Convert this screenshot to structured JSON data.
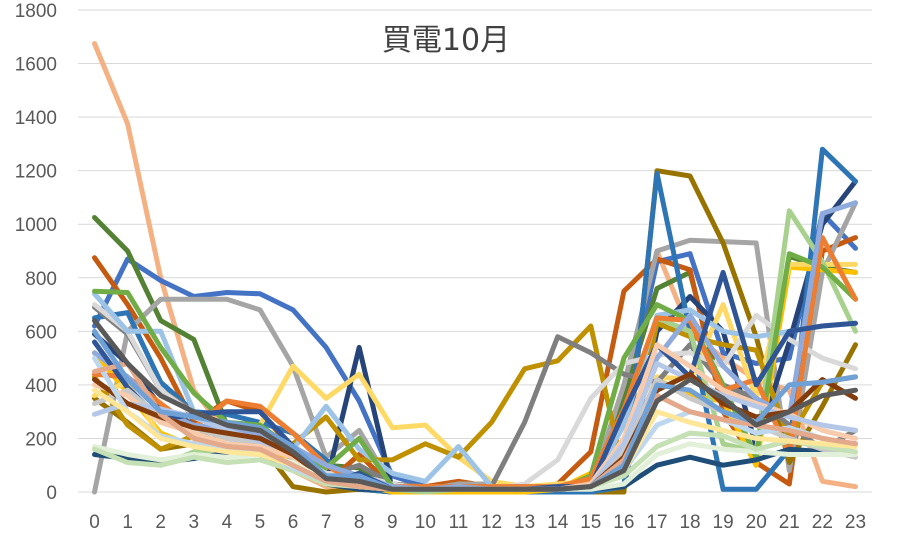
{
  "chart_data": {
    "type": "line",
    "title": "買電10月",
    "xlabel": "",
    "ylabel": "",
    "x": [
      0,
      1,
      2,
      3,
      4,
      5,
      6,
      7,
      8,
      9,
      10,
      11,
      12,
      13,
      14,
      15,
      16,
      17,
      18,
      19,
      20,
      21,
      22,
      23
    ],
    "ylim": [
      0,
      1800
    ],
    "yticks": [
      0,
      200,
      400,
      600,
      800,
      1000,
      1200,
      1400,
      1600,
      1800
    ],
    "grid": true,
    "legend": "none",
    "series": [
      {
        "color": "#F4B183",
        "values": [
          1675,
          1375,
          800,
          380,
          220,
          170,
          80,
          20,
          10,
          0,
          0,
          0,
          0,
          0,
          0,
          0,
          300,
          900,
          600,
          500,
          420,
          380,
          40,
          20
        ]
      },
      {
        "color": "#4472C4",
        "values": [
          620,
          870,
          790,
          730,
          745,
          740,
          680,
          540,
          340,
          60,
          20,
          10,
          10,
          10,
          10,
          20,
          300,
          860,
          890,
          520,
          480,
          500,
          1040,
          910
        ]
      },
      {
        "color": "#548235",
        "values": [
          1025,
          900,
          640,
          570,
          250,
          220,
          120,
          100,
          90,
          20,
          10,
          0,
          0,
          0,
          0,
          20,
          350,
          760,
          820,
          340,
          100,
          880,
          840,
          820
        ]
      },
      {
        "color": "#C55A11",
        "values": [
          875,
          700,
          500,
          260,
          340,
          300,
          160,
          30,
          140,
          20,
          20,
          40,
          20,
          10,
          30,
          150,
          750,
          870,
          830,
          300,
          110,
          30,
          900,
          950
        ]
      },
      {
        "color": "#A5A5A5",
        "values": [
          0,
          600,
          720,
          720,
          720,
          680,
          470,
          130,
          230,
          20,
          10,
          30,
          30,
          20,
          20,
          20,
          400,
          900,
          940,
          935,
          930,
          80,
          820,
          1080
        ]
      },
      {
        "color": "#997300",
        "values": [
          350,
          260,
          160,
          180,
          210,
          180,
          20,
          0,
          10,
          0,
          0,
          0,
          0,
          0,
          0,
          0,
          0,
          1200,
          1180,
          930,
          580,
          110,
          320,
          550
        ]
      },
      {
        "color": "#264478",
        "values": [
          590,
          480,
          320,
          250,
          230,
          220,
          140,
          30,
          540,
          10,
          10,
          10,
          10,
          10,
          10,
          10,
          20,
          600,
          730,
          600,
          170,
          560,
          1000,
          1160
        ]
      },
      {
        "color": "#2E75B6",
        "values": [
          650,
          670,
          410,
          300,
          290,
          260,
          220,
          120,
          10,
          0,
          0,
          0,
          0,
          0,
          0,
          0,
          20,
          1190,
          600,
          10,
          10,
          160,
          1280,
          1160
        ]
      },
      {
        "color": "#FFC000",
        "values": [
          520,
          370,
          220,
          170,
          150,
          140,
          130,
          40,
          30,
          0,
          0,
          0,
          0,
          0,
          10,
          70,
          110,
          420,
          360,
          340,
          100,
          840,
          830,
          820
        ]
      },
      {
        "color": "#FFD966",
        "values": [
          360,
          410,
          200,
          180,
          200,
          250,
          470,
          350,
          440,
          240,
          250,
          130,
          40,
          20,
          30,
          40,
          120,
          430,
          420,
          700,
          350,
          850,
          850,
          850
        ]
      },
      {
        "color": "#BF9000",
        "values": [
          430,
          250,
          160,
          210,
          230,
          150,
          180,
          280,
          120,
          120,
          180,
          130,
          260,
          460,
          490,
          620,
          70,
          630,
          580,
          550,
          530,
          200,
          410,
          430
        ]
      },
      {
        "color": "#7F7F7F",
        "values": [
          690,
          590,
          380,
          300,
          240,
          230,
          120,
          60,
          100,
          30,
          20,
          20,
          20,
          260,
          580,
          520,
          440,
          410,
          550,
          400,
          350,
          250,
          160,
          230
        ]
      },
      {
        "color": "#D9D9D9",
        "values": [
          700,
          600,
          380,
          290,
          220,
          210,
          130,
          70,
          60,
          30,
          10,
          20,
          10,
          30,
          120,
          350,
          480,
          510,
          520,
          470,
          660,
          570,
          500,
          460
        ]
      },
      {
        "color": "#9DC3E6",
        "values": [
          740,
          600,
          600,
          300,
          200,
          180,
          160,
          320,
          160,
          70,
          40,
          170,
          20,
          20,
          20,
          30,
          250,
          660,
          680,
          600,
          580,
          600,
          620,
          630
        ]
      },
      {
        "color": "#A9D18E",
        "values": [
          160,
          120,
          100,
          150,
          150,
          160,
          90,
          30,
          20,
          10,
          0,
          10,
          10,
          10,
          10,
          30,
          300,
          650,
          600,
          180,
          150,
          1050,
          860,
          600
        ]
      },
      {
        "color": "#70AD47",
        "values": [
          750,
          745,
          540,
          370,
          260,
          250,
          160,
          90,
          200,
          20,
          10,
          10,
          10,
          10,
          10,
          60,
          500,
          700,
          640,
          400,
          130,
          890,
          840,
          720
        ]
      },
      {
        "color": "#ED7D31",
        "values": [
          440,
          430,
          330,
          240,
          340,
          320,
          220,
          100,
          30,
          20,
          20,
          20,
          20,
          20,
          20,
          50,
          310,
          650,
          640,
          380,
          420,
          140,
          950,
          720
        ]
      },
      {
        "color": "#8FAADC",
        "values": [
          520,
          430,
          300,
          250,
          230,
          210,
          170,
          100,
          60,
          20,
          10,
          20,
          10,
          10,
          10,
          20,
          200,
          500,
          660,
          470,
          350,
          280,
          1040,
          1080
        ]
      },
      {
        "color": "#2F5597",
        "values": [
          560,
          390,
          270,
          290,
          300,
          300,
          170,
          30,
          70,
          10,
          10,
          10,
          10,
          10,
          20,
          20,
          300,
          550,
          430,
          820,
          400,
          600,
          620,
          630
        ]
      },
      {
        "color": "#1F4E79",
        "values": [
          140,
          125,
          110,
          125,
          145,
          140,
          100,
          30,
          10,
          10,
          10,
          10,
          10,
          10,
          10,
          10,
          20,
          100,
          130,
          100,
          120,
          160,
          150,
          180
        ]
      },
      {
        "color": "#C9C9C9",
        "values": [
          330,
          380,
          280,
          240,
          200,
          190,
          160,
          60,
          40,
          10,
          10,
          10,
          10,
          10,
          10,
          20,
          150,
          420,
          350,
          300,
          250,
          200,
          160,
          130
        ]
      },
      {
        "color": "#F8CBAD",
        "values": [
          400,
          360,
          260,
          220,
          180,
          170,
          130,
          50,
          30,
          10,
          10,
          10,
          10,
          10,
          10,
          30,
          200,
          550,
          470,
          380,
          330,
          290,
          230,
          200
        ]
      },
      {
        "color": "#B4C7E7",
        "values": [
          290,
          330,
          310,
          280,
          230,
          190,
          150,
          60,
          40,
          10,
          10,
          10,
          10,
          10,
          10,
          20,
          180,
          480,
          420,
          360,
          320,
          280,
          250,
          230
        ]
      },
      {
        "color": "#843C0C",
        "values": [
          420,
          330,
          280,
          240,
          220,
          200,
          140,
          50,
          30,
          10,
          10,
          10,
          10,
          10,
          10,
          20,
          130,
          380,
          440,
          330,
          280,
          300,
          420,
          350
        ]
      },
      {
        "color": "#E2F0D9",
        "values": [
          170,
          140,
          120,
          140,
          130,
          140,
          110,
          40,
          20,
          10,
          10,
          10,
          10,
          10,
          10,
          10,
          30,
          140,
          180,
          160,
          150,
          140,
          140,
          140
        ]
      },
      {
        "color": "#C5E0B4",
        "values": [
          160,
          110,
          100,
          130,
          110,
          120,
          80,
          30,
          20,
          10,
          10,
          10,
          10,
          10,
          10,
          20,
          60,
          170,
          220,
          210,
          160,
          190,
          170,
          150
        ]
      },
      {
        "color": "#BDD7EE",
        "values": [
          500,
          300,
          210,
          180,
          160,
          150,
          90,
          40,
          20,
          10,
          10,
          10,
          10,
          10,
          10,
          20,
          80,
          250,
          300,
          270,
          220,
          240,
          200,
          180
        ]
      },
      {
        "color": "#FFE699",
        "values": [
          380,
          300,
          200,
          170,
          150,
          140,
          100,
          40,
          20,
          10,
          10,
          10,
          10,
          10,
          10,
          20,
          80,
          300,
          260,
          230,
          200,
          190,
          180,
          170
        ]
      },
      {
        "color": "#E4A98A",
        "values": [
          450,
          480,
          290,
          200,
          170,
          160,
          100,
          40,
          20,
          10,
          10,
          10,
          10,
          10,
          10,
          20,
          120,
          360,
          300,
          270,
          250,
          230,
          200,
          180
        ]
      },
      {
        "color": "#6FA0D6",
        "values": [
          600,
          420,
          300,
          280,
          260,
          240,
          170,
          60,
          60,
          10,
          10,
          10,
          10,
          10,
          10,
          20,
          100,
          400,
          380,
          300,
          260,
          400,
          410,
          430
        ]
      },
      {
        "color": "#595959",
        "values": [
          640,
          480,
          360,
          300,
          250,
          230,
          150,
          50,
          40,
          10,
          10,
          10,
          10,
          10,
          10,
          20,
          80,
          340,
          420,
          350,
          250,
          300,
          360,
          380
        ]
      }
    ]
  }
}
